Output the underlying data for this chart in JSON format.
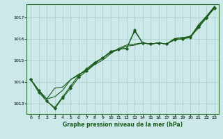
{
  "background_color": "#cce8e8",
  "grid_color": "#aacccc",
  "line_color": "#1a5c1a",
  "marker_color": "#1a5c1a",
  "xlabel": "Graphe pression niveau de la mer (hPa)",
  "xlim": [
    -0.5,
    23.5
  ],
  "ylim": [
    1012.5,
    1017.6
  ],
  "yticks": [
    1013,
    1014,
    1015,
    1016,
    1017
  ],
  "xticks": [
    0,
    1,
    2,
    3,
    4,
    5,
    6,
    7,
    8,
    9,
    10,
    11,
    12,
    13,
    14,
    15,
    16,
    17,
    18,
    19,
    20,
    21,
    22,
    23
  ],
  "series": [
    [
      1014.1,
      1013.6,
      1013.1,
      1012.8,
      1013.3,
      1013.8,
      1014.3,
      1014.6,
      1014.9,
      1015.1,
      1015.4,
      1015.5,
      1015.55,
      1016.4,
      1015.8,
      1015.75,
      1015.8,
      1015.75,
      1015.95,
      1016.0,
      1016.1,
      1016.6,
      1017.0,
      1017.4
    ],
    [
      1014.1,
      1013.6,
      1013.2,
      1013.3,
      1013.6,
      1014.1,
      1014.35,
      1014.5,
      1014.8,
      1015.0,
      1015.3,
      1015.55,
      1015.7,
      1015.75,
      1015.8,
      1015.75,
      1015.8,
      1015.75,
      1016.0,
      1016.05,
      1016.1,
      1016.65,
      1017.05,
      1017.5
    ],
    [
      1014.1,
      1013.6,
      1013.2,
      1013.7,
      1013.75,
      1014.1,
      1014.3,
      1014.55,
      1014.85,
      1015.1,
      1015.35,
      1015.5,
      1015.65,
      1015.7,
      1015.8,
      1015.75,
      1015.8,
      1015.75,
      1016.0,
      1016.05,
      1016.1,
      1016.5,
      1017.0,
      1017.5
    ],
    [
      1014.1,
      1013.5,
      1013.1,
      1012.75,
      1013.25,
      1013.7,
      1014.2,
      1014.5,
      1014.85,
      1015.1,
      1015.4,
      1015.5,
      1015.55,
      1016.35,
      1015.8,
      1015.75,
      1015.8,
      1015.75,
      1015.95,
      1015.99,
      1016.05,
      1016.55,
      1016.95,
      1017.45
    ]
  ],
  "show_markers": [
    true,
    false,
    false,
    true
  ],
  "xlabel_fontsize": 5.5,
  "tick_fontsize": 4.5,
  "linewidth": 0.8,
  "markersize": 2.2,
  "spine_color": "#2a6e2a",
  "frame_color": "#2a6e2a"
}
